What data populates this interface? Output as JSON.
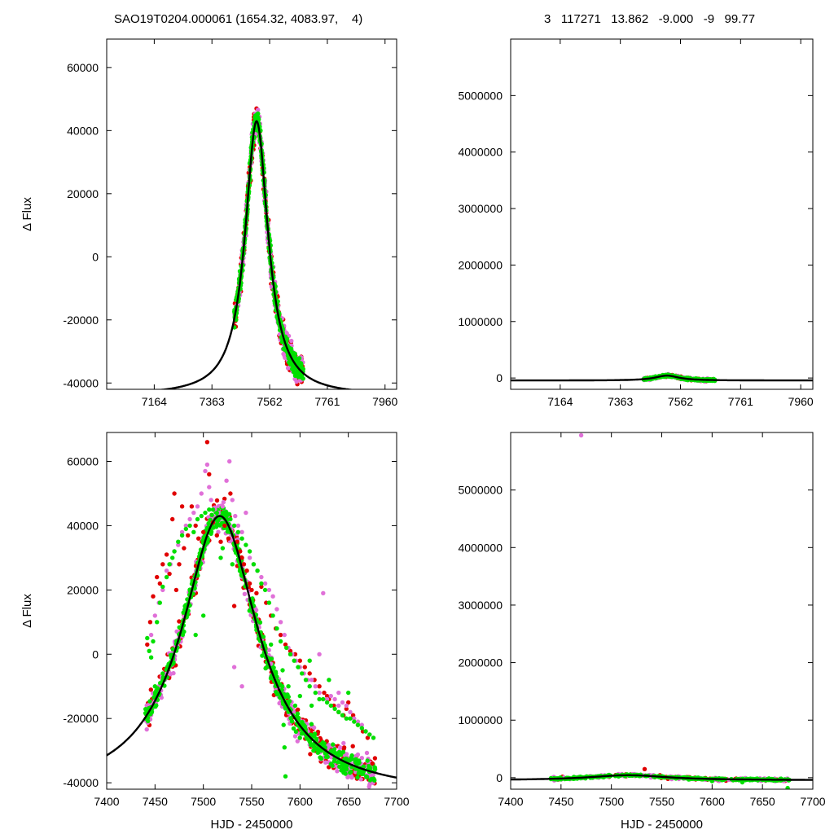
{
  "header": {
    "title_left": "SAO19T0204.000061 (1654.32, 4083.97,    4)",
    "title_right": "3   117271   13.862   -9.000   -9   99.77"
  },
  "colors": {
    "red": "#e00000",
    "pink": "#e070d8",
    "green": "#00e000",
    "curve": "#000000"
  },
  "chart_data": [
    {
      "id": "top-left",
      "type": "scatter",
      "ylabel": "Δ Flux",
      "xlabel": "",
      "xlim": [
        7000,
        8000
      ],
      "ylim": [
        -42000,
        69000
      ],
      "xticks": [
        7164,
        7363,
        7562,
        7761,
        7960
      ],
      "yticks": [
        -40000,
        -20000,
        0,
        20000,
        40000,
        60000
      ],
      "model": {
        "type": "peak",
        "baseline": -44000,
        "peak_x": 7517,
        "peak_y": 43000,
        "sigma": 48
      },
      "series": []
    },
    {
      "id": "top-right",
      "type": "scatter",
      "ylabel": "",
      "xlabel": "",
      "xlim": [
        7000,
        8000
      ],
      "ylim": [
        -200000,
        6000000
      ],
      "xticks": [
        7164,
        7363,
        7562,
        7761,
        7960
      ],
      "yticks": [
        0,
        1000000,
        2000000,
        3000000,
        4000000,
        5000000
      ],
      "model": {
        "type": "peak",
        "baseline": -44000,
        "peak_x": 7517,
        "peak_y": 43000,
        "sigma": 48
      },
      "series": []
    },
    {
      "id": "bottom-left",
      "type": "scatter",
      "ylabel": "Δ Flux",
      "xlabel": "HJD - 2450000",
      "xlim": [
        7400,
        7700
      ],
      "ylim": [
        -42000,
        69000
      ],
      "xticks": [
        7400,
        7450,
        7500,
        7550,
        7600,
        7650,
        7700
      ],
      "yticks": [
        -40000,
        -20000,
        0,
        20000,
        40000,
        60000
      ],
      "model": {
        "type": "peak",
        "baseline": -44000,
        "peak_x": 7517,
        "peak_y": 43000,
        "sigma": 48
      },
      "series": [
        {
          "color": "red",
          "points": [
            [
              7442,
              3000
            ],
            [
              7445,
              10000
            ],
            [
              7448,
              18000
            ],
            [
              7452,
              24000
            ],
            [
              7455,
              22000
            ],
            [
              7458,
              28000
            ],
            [
              7462,
              31000
            ],
            [
              7465,
              25000
            ],
            [
              7468,
              42000
            ],
            [
              7470,
              50000
            ],
            [
              7472,
              20000
            ],
            [
              7475,
              28000
            ],
            [
              7478,
              46000
            ],
            [
              7480,
              33000
            ],
            [
              7484,
              37000
            ],
            [
              7488,
              46000
            ],
            [
              7492,
              40000
            ],
            [
              7495,
              36000
            ],
            [
              7500,
              38000
            ],
            [
              7504,
              66000
            ],
            [
              7506,
              56000
            ],
            [
              7510,
              41000
            ],
            [
              7514,
              37000
            ],
            [
              7518,
              35000
            ],
            [
              7522,
              40000
            ],
            [
              7526,
              36000
            ],
            [
              7528,
              50000
            ],
            [
              7532,
              15000
            ],
            [
              7535,
              35000
            ],
            [
              7538,
              32000
            ],
            [
              7540,
              30000
            ],
            [
              7542,
              28000
            ],
            [
              7545,
              26000
            ],
            [
              7548,
              22000
            ],
            [
              7550,
              20000
            ],
            [
              7555,
              19000
            ],
            [
              7560,
              21000
            ],
            [
              7565,
              16000
            ],
            [
              7570,
              12000
            ],
            [
              7575,
              8000
            ],
            [
              7580,
              6000
            ],
            [
              7585,
              3000
            ],
            [
              7590,
              1000
            ],
            [
              7595,
              0
            ],
            [
              7600,
              -2000
            ],
            [
              7605,
              -4000
            ],
            [
              7610,
              -6000
            ],
            [
              7615,
              -8000
            ],
            [
              7620,
              -10000
            ],
            [
              7625,
              -12000
            ],
            [
              7628,
              -13000
            ],
            [
              7630,
              -14000
            ],
            [
              7635,
              -16000
            ],
            [
              7640,
              -18000
            ],
            [
              7645,
              -19000
            ],
            [
              7648,
              -17000
            ],
            [
              7650,
              -15000
            ],
            [
              7655,
              -19000
            ],
            [
              7660,
              -22000
            ],
            [
              7665,
              -24000
            ],
            [
              7670,
              -26000
            ],
            [
              7675,
              -34000
            ]
          ]
        },
        {
          "color": "pink",
          "points": [
            [
              7446,
              6000
            ],
            [
              7450,
              12000
            ],
            [
              7454,
              16000
            ],
            [
              7458,
              20000
            ],
            [
              7462,
              26000
            ],
            [
              7466,
              28000
            ],
            [
              7470,
              32000
            ],
            [
              7474,
              34000
            ],
            [
              7478,
              38000
            ],
            [
              7482,
              40000
            ],
            [
              7486,
              42000
            ],
            [
              7490,
              44000
            ],
            [
              7494,
              46000
            ],
            [
              7498,
              50000
            ],
            [
              7502,
              57000
            ],
            [
              7504,
              59000
            ],
            [
              7506,
              52000
            ],
            [
              7508,
              48000
            ],
            [
              7512,
              45000
            ],
            [
              7516,
              44000
            ],
            [
              7520,
              46000
            ],
            [
              7524,
              54000
            ],
            [
              7527,
              60000
            ],
            [
              7530,
              48000
            ],
            [
              7533,
              43000
            ],
            [
              7536,
              40000
            ],
            [
              7540,
              38000
            ],
            [
              7544,
              44000
            ],
            [
              7548,
              30000
            ],
            [
              7552,
              28000
            ],
            [
              7556,
              26000
            ],
            [
              7560,
              24000
            ],
            [
              7564,
              22000
            ],
            [
              7568,
              20000
            ],
            [
              7570,
              -3000
            ],
            [
              7572,
              18000
            ],
            [
              7576,
              14000
            ],
            [
              7580,
              10000
            ],
            [
              7584,
              6000
            ],
            [
              7588,
              2000
            ],
            [
              7592,
              0
            ],
            [
              7596,
              -2000
            ],
            [
              7600,
              -4000
            ],
            [
              7604,
              -6000
            ],
            [
              7608,
              -8000
            ],
            [
              7612,
              -8000
            ],
            [
              7616,
              -10000
            ],
            [
              7620,
              -12000
            ],
            [
              7624,
              19000
            ],
            [
              7628,
              -14000
            ],
            [
              7632,
              -13000
            ],
            [
              7636,
              -14000
            ],
            [
              7640,
              -16000
            ],
            [
              7644,
              -15000
            ],
            [
              7648,
              -16000
            ],
            [
              7652,
              -18000
            ],
            [
              7656,
              -20000
            ],
            [
              7660,
              -21000
            ],
            [
              7664,
              -22000
            ],
            [
              7668,
              -24000
            ],
            [
              7672,
              -25000
            ],
            [
              7676,
              -26000
            ],
            [
              7532,
              -4000
            ],
            [
              7540,
              -10000
            ],
            [
              7620,
              0
            ],
            [
              7640,
              -12000
            ]
          ]
        },
        {
          "color": "green",
          "points": [
            [
              7442,
              5000
            ],
            [
              7444,
              1000
            ],
            [
              7446,
              -1000
            ],
            [
              7448,
              4000
            ],
            [
              7450,
              -10000
            ],
            [
              7452,
              10000
            ],
            [
              7455,
              16000
            ],
            [
              7458,
              21000
            ],
            [
              7462,
              24000
            ],
            [
              7465,
              28000
            ],
            [
              7468,
              30000
            ],
            [
              7470,
              32000
            ],
            [
              7474,
              35000
            ],
            [
              7478,
              37000
            ],
            [
              7482,
              39000
            ],
            [
              7486,
              40000
            ],
            [
              7490,
              38000
            ],
            [
              7492,
              6000
            ],
            [
              7494,
              42000
            ],
            [
              7498,
              43000
            ],
            [
              7502,
              44000
            ],
            [
              7506,
              45000
            ],
            [
              7510,
              45000
            ],
            [
              7514,
              44000
            ],
            [
              7518,
              30000
            ],
            [
              7520,
              44000
            ],
            [
              7524,
              43000
            ],
            [
              7528,
              42000
            ],
            [
              7530,
              28000
            ],
            [
              7532,
              40000
            ],
            [
              7536,
              38000
            ],
            [
              7540,
              36000
            ],
            [
              7544,
              34000
            ],
            [
              7548,
              32000
            ],
            [
              7552,
              28000
            ],
            [
              7556,
              26000
            ],
            [
              7560,
              22000
            ],
            [
              7564,
              20000
            ],
            [
              7568,
              16000
            ],
            [
              7572,
              12000
            ],
            [
              7576,
              8000
            ],
            [
              7580,
              4000
            ],
            [
              7582,
              -5000
            ],
            [
              7583,
              -22000
            ],
            [
              7584,
              -29000
            ],
            [
              7585,
              -38000
            ],
            [
              7586,
              2000
            ],
            [
              7588,
              -10000
            ],
            [
              7590,
              0
            ],
            [
              7594,
              -2000
            ],
            [
              7598,
              -4000
            ],
            [
              7600,
              -13000
            ],
            [
              7602,
              -6000
            ],
            [
              7604,
              -22000
            ],
            [
              7606,
              -8000
            ],
            [
              7610,
              -10000
            ],
            [
              7612,
              -16000
            ],
            [
              7614,
              -30000
            ],
            [
              7616,
              -12000
            ],
            [
              7620,
              -14000
            ],
            [
              7622,
              -29000
            ],
            [
              7624,
              -14000
            ],
            [
              7628,
              -15000
            ],
            [
              7632,
              -16000
            ],
            [
              7636,
              -17000
            ],
            [
              7640,
              -18000
            ],
            [
              7644,
              -19000
            ],
            [
              7648,
              -20000
            ],
            [
              7652,
              -20000
            ],
            [
              7656,
              -21000
            ],
            [
              7660,
              -22000
            ],
            [
              7664,
              -23000
            ],
            [
              7668,
              -24000
            ],
            [
              7672,
              -25000
            ],
            [
              7676,
              -26000
            ],
            [
              7480,
              7000
            ],
            [
              7500,
              12000
            ],
            [
              7520,
              33000
            ],
            [
              7570,
              3000
            ],
            [
              7575,
              -6000
            ],
            [
              7595,
              -16000
            ],
            [
              7610,
              -2000
            ],
            [
              7630,
              -8000
            ],
            [
              7650,
              -12000
            ]
          ]
        }
      ]
    },
    {
      "id": "bottom-right",
      "type": "scatter",
      "ylabel": "",
      "xlabel": "HJD - 2450000",
      "xlim": [
        7400,
        7700
      ],
      "ylim": [
        -200000,
        6000000
      ],
      "xticks": [
        7400,
        7450,
        7500,
        7550,
        7600,
        7650,
        7700
      ],
      "yticks": [
        0,
        1000000,
        2000000,
        3000000,
        4000000,
        5000000
      ],
      "model": {
        "type": "peak",
        "baseline": -44000,
        "peak_x": 7517,
        "peak_y": 43000,
        "sigma": 48
      },
      "series": [
        {
          "color": "pink",
          "points": [
            [
              7470,
              5950000
            ]
          ]
        },
        {
          "color": "red",
          "points": [
            [
              7533,
              150000
            ]
          ]
        },
        {
          "color": "green",
          "points": [
            [
              7675,
              -180000
            ],
            [
              7630,
              -80000
            ],
            [
              7600,
              -60000
            ]
          ]
        }
      ]
    }
  ]
}
